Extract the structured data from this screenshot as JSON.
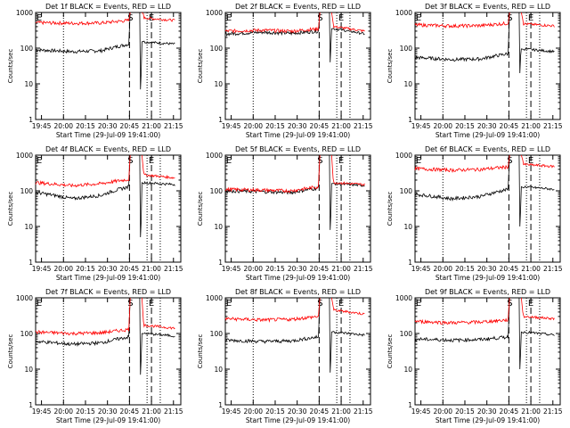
{
  "figure": {
    "ylabel": "Counts/sec",
    "xlabel": "Start Time (29-Jul-09 19:41:00)",
    "y_ticks": [
      "1",
      "10",
      "100",
      "1000"
    ],
    "x_ticks": [
      "19:45",
      "20:00",
      "20:15",
      "20:30",
      "20:45",
      "21:00",
      "21:15"
    ],
    "marker_s": "S",
    "marker_e": "E",
    "colors": {
      "events": "#000000",
      "lld": "#ff0000"
    }
  },
  "chart_data": [
    {
      "type": "line",
      "title": "Det 1f BLACK = Events, RED = LLD",
      "x_range": [
        "19:41",
        "21:20"
      ],
      "ylim": [
        1,
        1000
      ],
      "yscale": "log",
      "series": [
        {
          "name": "Events",
          "color": "#000000",
          "values": [
            90,
            80,
            85,
            130,
            1000,
            7,
            150,
            130
          ]
        },
        {
          "name": "LLD",
          "color": "#ff0000",
          "values": [
            520,
            500,
            510,
            600,
            1000,
            1000,
            700,
            600
          ]
        }
      ]
    },
    {
      "type": "line",
      "title": "Det 2f BLACK = Events, RED = LLD",
      "x_range": [
        "19:41",
        "21:20"
      ],
      "ylim": [
        1,
        1000
      ],
      "yscale": "log",
      "series": [
        {
          "name": "Events",
          "color": "#000000",
          "values": [
            250,
            280,
            260,
            300,
            1000,
            40,
            350,
            250
          ]
        },
        {
          "name": "LLD",
          "color": "#ff0000",
          "values": [
            300,
            320,
            300,
            350,
            1000,
            1000,
            400,
            300
          ]
        }
      ]
    },
    {
      "type": "line",
      "title": "Det 3f BLACK = Events, RED = LLD",
      "x_range": [
        "19:41",
        "21:20"
      ],
      "ylim": [
        1,
        1000
      ],
      "yscale": "log",
      "series": [
        {
          "name": "Events",
          "color": "#000000",
          "values": [
            55,
            48,
            50,
            70,
            1000,
            20,
            95,
            80
          ]
        },
        {
          "name": "LLD",
          "color": "#ff0000",
          "values": [
            450,
            420,
            430,
            500,
            1000,
            1000,
            480,
            420
          ]
        }
      ]
    },
    {
      "type": "line",
      "title": "Det 4f BLACK = Events, RED = LLD",
      "x_range": [
        "19:41",
        "21:20"
      ],
      "ylim": [
        1,
        1000
      ],
      "yscale": "log",
      "series": [
        {
          "name": "Events",
          "color": "#000000",
          "values": [
            90,
            60,
            75,
            130,
            1000,
            5,
            170,
            150
          ]
        },
        {
          "name": "LLD",
          "color": "#ff0000",
          "values": [
            170,
            140,
            160,
            210,
            1000,
            1000,
            280,
            230
          ]
        }
      ]
    },
    {
      "type": "line",
      "title": "Det 5f BLACK = Events, RED = LLD",
      "x_range": [
        "19:41",
        "21:20"
      ],
      "ylim": [
        1,
        1000
      ],
      "yscale": "log",
      "series": [
        {
          "name": "Events",
          "color": "#000000",
          "values": [
            100,
            95,
            90,
            120,
            1000,
            8,
            160,
            140
          ]
        },
        {
          "name": "LLD",
          "color": "#ff0000",
          "values": [
            110,
            105,
            100,
            130,
            1000,
            1000,
            170,
            150
          ]
        }
      ]
    },
    {
      "type": "line",
      "title": "Det 6f BLACK = Events, RED = LLD",
      "x_range": [
        "19:41",
        "21:20"
      ],
      "ylim": [
        1,
        1000
      ],
      "yscale": "log",
      "series": [
        {
          "name": "Events",
          "color": "#000000",
          "values": [
            80,
            60,
            70,
            110,
            1000,
            10,
            130,
            110
          ]
        },
        {
          "name": "LLD",
          "color": "#ff0000",
          "values": [
            420,
            380,
            400,
            470,
            1000,
            1000,
            550,
            480
          ]
        }
      ]
    },
    {
      "type": "line",
      "title": "Det 7f BLACK = Events, RED = LLD",
      "x_range": [
        "19:41",
        "21:20"
      ],
      "ylim": [
        1,
        1000
      ],
      "yscale": "log",
      "series": [
        {
          "name": "Events",
          "color": "#000000",
          "values": [
            60,
            50,
            55,
            80,
            1000,
            7,
            100,
            85
          ]
        },
        {
          "name": "LLD",
          "color": "#ff0000",
          "values": [
            110,
            100,
            105,
            130,
            1000,
            1000,
            170,
            140
          ]
        }
      ]
    },
    {
      "type": "line",
      "title": "Det 8f BLACK = Events, RED = LLD",
      "x_range": [
        "19:41",
        "21:20"
      ],
      "ylim": [
        1,
        1000
      ],
      "yscale": "log",
      "series": [
        {
          "name": "Events",
          "color": "#000000",
          "values": [
            65,
            60,
            62,
            80,
            1000,
            8,
            110,
            90
          ]
        },
        {
          "name": "LLD",
          "color": "#ff0000",
          "values": [
            260,
            240,
            250,
            300,
            1000,
            1000,
            450,
            350
          ]
        }
      ]
    },
    {
      "type": "line",
      "title": "Det 9f BLACK = Events, RED = LLD",
      "x_range": [
        "19:41",
        "21:20"
      ],
      "ylim": [
        1,
        1000
      ],
      "yscale": "log",
      "series": [
        {
          "name": "Events",
          "color": "#000000",
          "values": [
            70,
            65,
            68,
            80,
            1000,
            10,
            110,
            90
          ]
        },
        {
          "name": "LLD",
          "color": "#ff0000",
          "values": [
            220,
            200,
            210,
            240,
            1000,
            1000,
            300,
            260
          ]
        }
      ]
    }
  ]
}
